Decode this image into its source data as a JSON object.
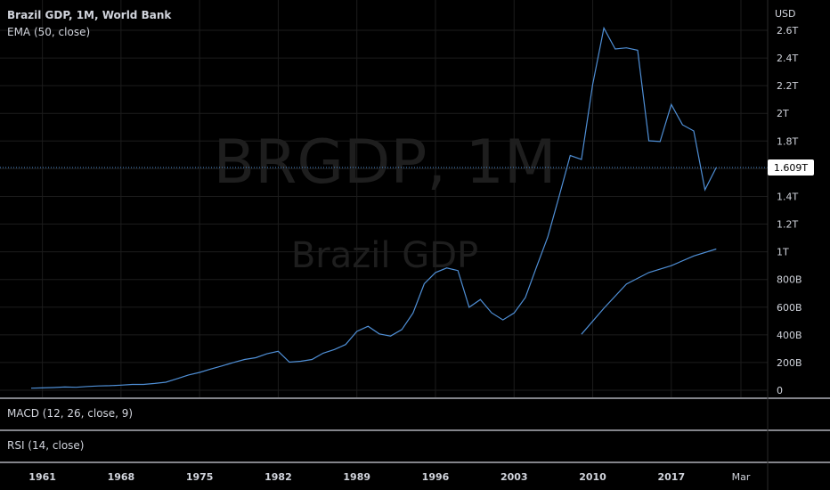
{
  "header": {
    "title": "Brazil GDP, 1M, World Bank",
    "indicator": "EMA (50, close)"
  },
  "watermark": {
    "symbol": "BRGDP, 1M",
    "name": "Brazil GDP"
  },
  "panes": {
    "macd_label": "MACD (12, 26, close, 9)",
    "rsi_label": "RSI (14, close)"
  },
  "price_axis": {
    "currency": "USD",
    "last_value_label": "1.609T"
  },
  "colors": {
    "background": "#000000",
    "line": "#4f8fd6",
    "ema": "#4f8fd6",
    "grid": "#1c1c1c",
    "last_value_badge": "#ffffff",
    "separator": "#d1d4dc"
  },
  "chart_data": {
    "type": "line",
    "title": "Brazil GDP, 1M, World Bank",
    "ylabel": "USD",
    "ylim": [
      0,
      2700
    ],
    "y_unit": "billions USD",
    "y_ticks": [
      {
        "value": 0,
        "label": "0"
      },
      {
        "value": 200,
        "label": "200B"
      },
      {
        "value": 400,
        "label": "400B"
      },
      {
        "value": 600,
        "label": "600B"
      },
      {
        "value": 800,
        "label": "800B"
      },
      {
        "value": 1000,
        "label": "1T"
      },
      {
        "value": 1200,
        "label": "1.2T"
      },
      {
        "value": 1400,
        "label": "1.4T"
      },
      {
        "value": 1600,
        "label": "1.6T"
      },
      {
        "value": 1800,
        "label": "1.8T"
      },
      {
        "value": 2000,
        "label": "2T"
      },
      {
        "value": 2200,
        "label": "2.2T"
      },
      {
        "value": 2400,
        "label": "2.4T"
      },
      {
        "value": 2600,
        "label": "2.6T"
      }
    ],
    "x_ticks": [
      "1961",
      "1968",
      "1975",
      "1982",
      "1989",
      "1996",
      "2003",
      "2010",
      "2017",
      "Mar"
    ],
    "x_tick_years": [
      1961,
      1968,
      1975,
      1982,
      1989,
      1996,
      2003,
      2010,
      2017,
      2023.2
    ],
    "xlim": [
      1960,
      2025
    ],
    "series": [
      {
        "name": "Brazil GDP",
        "x": [
          1960,
          1961,
          1962,
          1963,
          1964,
          1965,
          1966,
          1967,
          1968,
          1969,
          1970,
          1971,
          1972,
          1973,
          1974,
          1975,
          1976,
          1977,
          1978,
          1979,
          1980,
          1981,
          1982,
          1983,
          1984,
          1985,
          1986,
          1987,
          1988,
          1989,
          1990,
          1991,
          1992,
          1993,
          1994,
          1995,
          1996,
          1997,
          1998,
          1999,
          2000,
          2001,
          2002,
          2003,
          2004,
          2005,
          2006,
          2007,
          2008,
          2009,
          2010,
          2011,
          2012,
          2013,
          2014,
          2015,
          2016,
          2017,
          2018,
          2019,
          2020,
          2021
        ],
        "values": [
          15,
          17,
          19,
          23,
          21,
          27,
          31,
          33,
          37,
          42,
          42,
          49,
          58,
          83,
          110,
          129,
          153,
          176,
          200,
          222,
          235,
          263,
          281,
          203,
          209,
          222,
          268,
          294,
          330,
          425,
          462,
          407,
          391,
          438,
          558,
          769,
          850,
          883,
          864,
          599,
          655,
          559,
          508,
          558,
          669,
          891,
          1107,
          1397,
          1696,
          1667,
          2209,
          2616,
          2465,
          2473,
          2456,
          1802,
          1796,
          2064,
          1917,
          1873,
          1448,
          1609
        ]
      },
      {
        "name": "EMA (50, close)",
        "x": [
          2009,
          2011,
          2013,
          2015,
          2017,
          2019,
          2021
        ],
        "values": [
          404,
          592,
          767,
          850,
          900,
          970,
          1020
        ]
      }
    ],
    "last_value": 1609,
    "grid": true,
    "legend": "top-left"
  }
}
